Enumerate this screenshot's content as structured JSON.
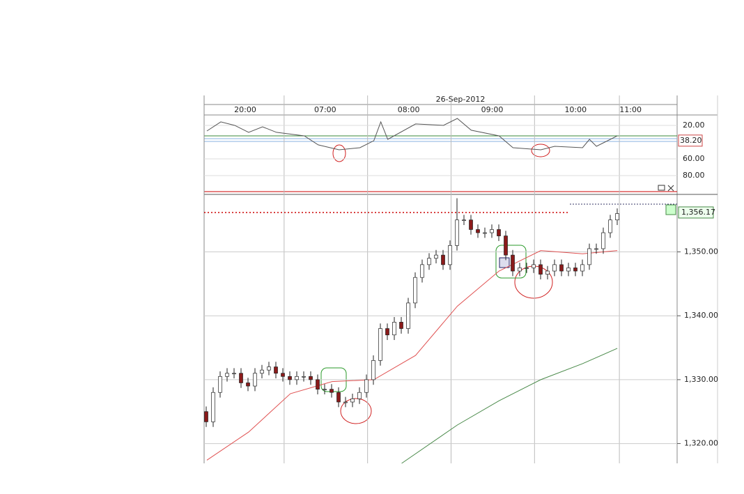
{
  "chart_data": {
    "type": "candlestick",
    "date_label": "26-Sep-2012",
    "open": [
      1325,
      1323.4,
      1328,
      1330.5,
      1331,
      1331,
      1329.5,
      1329,
      1331,
      1331.5,
      1332,
      1331,
      1330.5,
      1330,
      1330.5,
      1330.5,
      1330,
      1328.5,
      1328.5,
      1328,
      1326.5,
      1326.5,
      1327,
      1328,
      1330,
      1333,
      1338,
      1337,
      1339,
      1338,
      1342,
      1346,
      1348,
      1349,
      1349.5,
      1348,
      1351,
      1355,
      1355,
      1353.5,
      1353,
      1353,
      1353.5,
      1352.5,
      1349.5,
      1347,
      1347.5,
      1347.5,
      1348,
      1346.5,
      1347,
      1348,
      1347,
      1347.5,
      1347,
      1348,
      1350.5,
      1350.5,
      1353,
      1355
    ],
    "high": [
      1325.8,
      1328.8,
      1331.3,
      1331.8,
      1331.8,
      1331.8,
      1330.3,
      1331.8,
      1332.3,
      1332.8,
      1332.8,
      1331.8,
      1331.3,
      1331.3,
      1331.3,
      1331.3,
      1330.8,
      1329.3,
      1329.3,
      1328.8,
      1327.3,
      1327.8,
      1328.8,
      1330.8,
      1333.8,
      1338.8,
      1338.8,
      1339.8,
      1339.8,
      1342.8,
      1346.8,
      1348.8,
      1349.8,
      1350.3,
      1350.3,
      1351.8,
      1358.4,
      1355.8,
      1355.8,
      1354.3,
      1353.8,
      1354.3,
      1354.3,
      1353.3,
      1350.3,
      1348.3,
      1348.3,
      1348.8,
      1348.8,
      1347.8,
      1348.8,
      1348.8,
      1348.3,
      1348.3,
      1348.8,
      1351.3,
      1351.3,
      1353.8,
      1355.8,
      1356.8
    ],
    "low": [
      1322.6,
      1322.6,
      1327.2,
      1329.7,
      1330.2,
      1328.7,
      1328.2,
      1328.2,
      1330.2,
      1330.7,
      1330.2,
      1329.7,
      1329.2,
      1329.2,
      1329.7,
      1329.2,
      1327.7,
      1327.7,
      1327.2,
      1325.7,
      1325.7,
      1325.7,
      1326.2,
      1327.2,
      1329.2,
      1332.2,
      1336.2,
      1336.2,
      1337.2,
      1337.2,
      1341.2,
      1345.2,
      1347.2,
      1348.2,
      1347.2,
      1347.2,
      1350.2,
      1354.2,
      1352.7,
      1352.2,
      1352.2,
      1352.2,
      1351.7,
      1348.7,
      1346.2,
      1346.2,
      1346.7,
      1346.7,
      1345.7,
      1345.7,
      1346.2,
      1346.2,
      1346.2,
      1346.2,
      1346.2,
      1347.2,
      1349.7,
      1349.7,
      1352.2,
      1354.2
    ],
    "close": [
      1323.4,
      1328,
      1330.5,
      1331,
      1331,
      1329.5,
      1329,
      1331,
      1331.5,
      1332,
      1331,
      1330.5,
      1330,
      1330.5,
      1330.5,
      1330,
      1328.5,
      1328.5,
      1328,
      1326.5,
      1326.5,
      1327,
      1328,
      1330,
      1333,
      1338,
      1337,
      1339,
      1338,
      1342,
      1346,
      1348,
      1349,
      1349.5,
      1348,
      1351,
      1355,
      1355,
      1353.5,
      1353,
      1353,
      1353.5,
      1352.5,
      1349.5,
      1347,
      1347.5,
      1347.5,
      1348,
      1346.5,
      1347,
      1348,
      1347,
      1347.5,
      1347,
      1348,
      1350.5,
      1350.5,
      1353,
      1355,
      1356
    ],
    "up_color": "#ffffff",
    "down_color": "#8b1a1a",
    "lines": [
      {
        "color": "#e05050",
        "x": [
          0,
          6,
          12,
          18,
          24,
          30,
          36,
          42,
          48,
          54,
          59
        ],
        "values": [
          1317.4,
          1321.8,
          1327.8,
          1329.7,
          1330,
          1333.8,
          1341.5,
          1347,
          1350.2,
          1349.7,
          1350.2
        ]
      },
      {
        "color": "#4a8a4a",
        "x": [
          28,
          36,
          42,
          48,
          54,
          59
        ],
        "values": [
          1316.9,
          1322.9,
          1326.7,
          1330,
          1332.5,
          1334.9
        ]
      }
    ],
    "last_price": {
      "value": 1356.17,
      "label": "1,356.17"
    },
    "xlim": [
      -0.4,
      67.6
    ],
    "xticks": [
      {
        "value": -0.4,
        "label": "20:00"
      },
      {
        "value": 11.1,
        "label": "07:00"
      },
      {
        "value": 23.1,
        "label": "08:00"
      },
      {
        "value": 35.1,
        "label": "09:00"
      },
      {
        "value": 47.1,
        "label": "10:00"
      },
      {
        "value": 59.3,
        "label": "11:00"
      }
    ],
    "ylim": [
      1316.9,
      1359
    ],
    "yticks": [
      {
        "value": 1320,
        "label": "1,320.00"
      },
      {
        "value": 1330,
        "label": "1,330.00"
      },
      {
        "value": 1340,
        "label": "1,340.00"
      },
      {
        "value": 1350,
        "label": "1,350.00"
      }
    ],
    "indicator": {
      "color": "#555555",
      "inverted": true,
      "x": [
        0,
        2,
        4,
        6,
        8,
        10,
        14,
        16,
        19,
        22,
        24,
        25,
        26,
        30,
        34,
        36,
        38,
        42,
        44,
        48,
        50,
        54,
        55,
        56,
        58,
        59
      ],
      "values": [
        26.7,
        15.8,
        20,
        28.3,
        21.7,
        28.3,
        32.5,
        43.3,
        49.2,
        46.7,
        38.3,
        15.8,
        36.7,
        18.3,
        20,
        11.7,
        25.8,
        32.5,
        46.7,
        49.2,
        45,
        46.7,
        36.7,
        45,
        36.7,
        32.5
      ],
      "last": {
        "value": 38.2,
        "label": "38.20"
      },
      "ylim": [
        9.2,
        99.2
      ],
      "yticks": [
        {
          "value": 20,
          "label": "20.00"
        },
        {
          "value": 60,
          "label": "60.00"
        },
        {
          "value": 80,
          "label": "80.00"
        }
      ]
    }
  }
}
